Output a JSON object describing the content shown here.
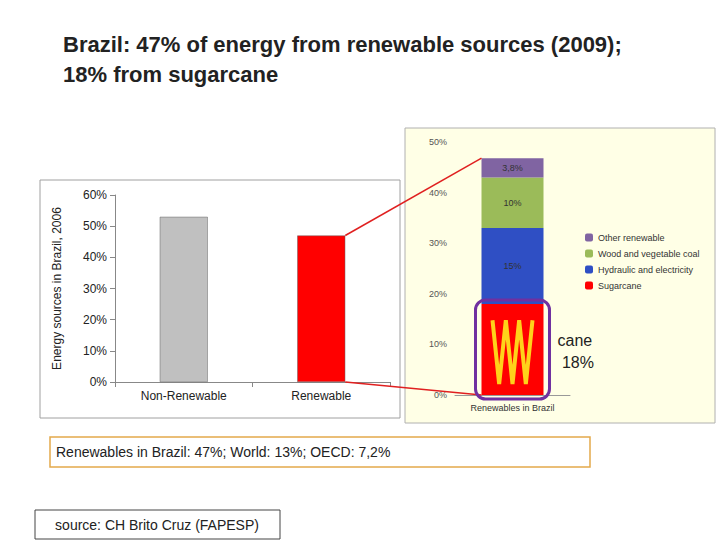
{
  "chart_data": [
    {
      "type": "bar",
      "title": "Brazil: 47% of energy from renewable sources (2009); 18% from sugarcane",
      "ylabel": "Energy sources in Brazil, 2006",
      "categories": [
        "Non-Renewable",
        "Renewable"
      ],
      "values": [
        53,
        47
      ],
      "colors": [
        "#c0c0c0",
        "#ff0000"
      ],
      "ylim": [
        0,
        60
      ],
      "yticks": [
        {
          "value": 0,
          "label": "0%"
        },
        {
          "value": 10,
          "label": "10%"
        },
        {
          "value": 20,
          "label": "20%"
        },
        {
          "value": 30,
          "label": "30%"
        },
        {
          "value": 40,
          "label": "40%"
        },
        {
          "value": 50,
          "label": "50%"
        },
        {
          "value": 60,
          "label": "60%"
        }
      ],
      "grid": false,
      "annotations": [
        "Renewables in Brazil: 47%; World: 13%; OECD: 7,2%",
        "source: CH Brito Cruz (FAPESP)"
      ]
    },
    {
      "type": "bar",
      "stacked": true,
      "categories": [
        "Renewables in Brazil"
      ],
      "series": [
        {
          "name": "Sugarcane",
          "color": "#ff0000",
          "values": [
            18
          ]
        },
        {
          "name": "Hydraulic and electricity",
          "color": "#2f4fc4",
          "values": [
            15
          ],
          "value_labels": [
            "15%"
          ]
        },
        {
          "name": "Wood and vegetable coal",
          "color": "#9bbb59",
          "values": [
            10
          ],
          "value_labels": [
            "10%"
          ]
        },
        {
          "name": "Other renewable",
          "color": "#8064a2",
          "values": [
            3.8
          ],
          "value_labels": [
            "3,8%"
          ]
        }
      ],
      "ylim": [
        0,
        50
      ],
      "yticks": [
        {
          "value": 0,
          "label": "0%"
        },
        {
          "value": 10,
          "label": "10%"
        },
        {
          "value": 20,
          "label": "20%"
        },
        {
          "value": 30,
          "label": "30%"
        },
        {
          "value": 40,
          "label": "40%"
        },
        {
          "value": 50,
          "label": "50%"
        }
      ],
      "grid": false,
      "legend": "right",
      "data_labels": true,
      "annotations": [
        "cane 18%"
      ]
    }
  ]
}
